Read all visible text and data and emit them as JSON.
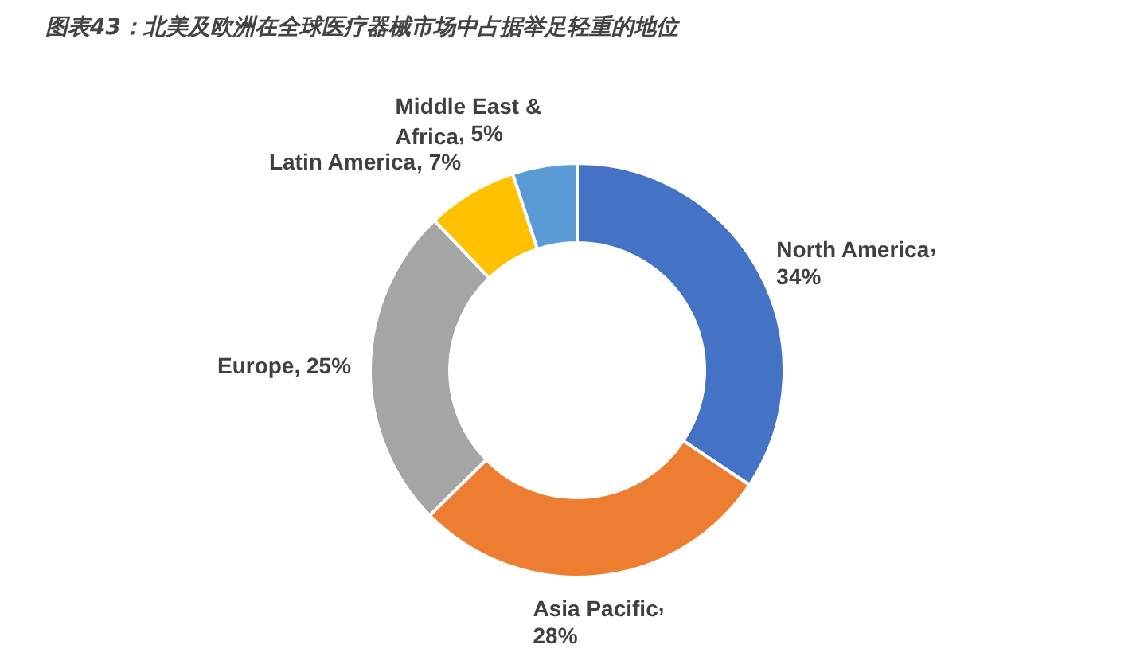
{
  "chart_data": {
    "type": "donut",
    "title": "图表43：北美及欧洲在全球医疗器械市场中占据举足轻重的地位",
    "categories": [
      "North America",
      "Asia Pacific",
      "Europe",
      "Latin America",
      "Middle East & Africa"
    ],
    "values": [
      34,
      28,
      25,
      7,
      5
    ],
    "colors": [
      "#4472c4",
      "#ed7d31",
      "#a5a5a5",
      "#ffc000",
      "#5b9bd5"
    ],
    "data_labels": true,
    "value_labels": [
      ",\n34%",
      ",\n28%",
      ", 25%",
      ", 7%",
      ", 5%"
    ],
    "legend": false
  }
}
